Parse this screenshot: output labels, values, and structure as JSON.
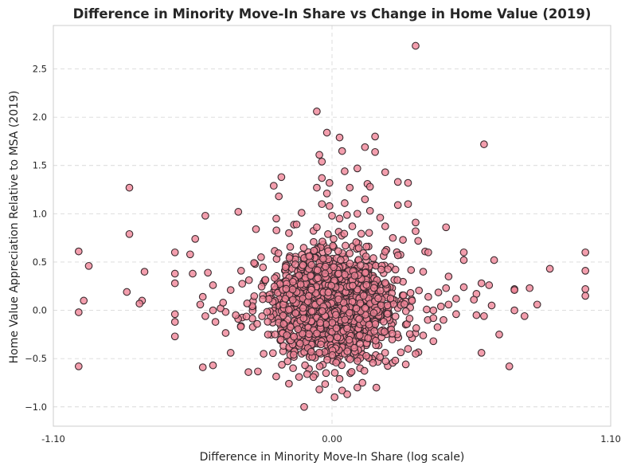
{
  "chart_data": {
    "type": "scatter",
    "title": "Difference in Minority Move-In Share vs Change in Home Value (2019)",
    "xlabel": "Difference in Minority Move-In Share (log scale)",
    "ylabel": "Home Value Appreciation Relative to MSA (2019)",
    "xlim": [
      -1.1,
      1.1
    ],
    "ylim": [
      -1.2,
      2.95
    ],
    "x_ticks": [
      -1.1,
      0.0,
      1.1
    ],
    "x_tick_labels": [
      "-1.10",
      "0.00",
      "1.10"
    ],
    "y_ticks": [
      -1.0,
      -0.5,
      0.0,
      0.5,
      1.0,
      1.5,
      2.0,
      2.5
    ],
    "y_tick_labels": [
      "−1.0",
      "−0.5",
      "0.0",
      "0.5",
      "1.0",
      "1.5",
      "2.0",
      "2.5"
    ],
    "grid": true,
    "marker_color": "#f08396",
    "marker_edge_color": "#3a2a2e",
    "points": [
      [
        0.33,
        2.74
      ],
      [
        -0.06,
        2.06
      ],
      [
        -0.02,
        1.84
      ],
      [
        0.03,
        1.79
      ],
      [
        0.17,
        1.8
      ],
      [
        0.6,
        1.72
      ],
      [
        0.13,
        1.69
      ],
      [
        -0.05,
        1.61
      ],
      [
        0.04,
        1.65
      ],
      [
        0.17,
        1.64
      ],
      [
        -0.04,
        1.54
      ],
      [
        0.1,
        1.47
      ],
      [
        0.05,
        1.44
      ],
      [
        0.21,
        1.43
      ],
      [
        -0.2,
        1.38
      ],
      [
        -0.23,
        1.29
      ],
      [
        -0.04,
        1.37
      ],
      [
        -0.01,
        1.32
      ],
      [
        0.14,
        1.31
      ],
      [
        0.26,
        1.33
      ],
      [
        0.3,
        1.32
      ],
      [
        -0.06,
        1.27
      ],
      [
        0.07,
        1.27
      ],
      [
        0.15,
        1.28
      ],
      [
        -0.8,
        1.27
      ],
      [
        -0.21,
        1.18
      ],
      [
        -0.02,
        1.21
      ],
      [
        0.13,
        1.15
      ],
      [
        -0.04,
        1.1
      ],
      [
        -0.01,
        1.08
      ],
      [
        0.05,
        1.11
      ],
      [
        0.26,
        1.09
      ],
      [
        0.3,
        1.1
      ],
      [
        -0.37,
        1.02
      ],
      [
        -0.12,
        1.01
      ],
      [
        0.0,
        0.98
      ],
      [
        0.1,
        1.0
      ],
      [
        0.15,
        1.03
      ],
      [
        -0.5,
        0.98
      ],
      [
        -0.22,
        0.95
      ],
      [
        0.03,
        0.95
      ],
      [
        0.19,
        0.96
      ],
      [
        0.33,
        0.91
      ],
      [
        -0.14,
        0.89
      ],
      [
        -0.06,
        0.86
      ],
      [
        0.08,
        0.87
      ],
      [
        0.21,
        0.87
      ],
      [
        0.45,
        0.86
      ],
      [
        -0.3,
        0.84
      ],
      [
        -0.17,
        0.8
      ],
      [
        -0.8,
        0.79
      ],
      [
        0.24,
        0.75
      ],
      [
        0.33,
        0.82
      ],
      [
        -0.54,
        0.74
      ],
      [
        0.28,
        0.73
      ],
      [
        0.34,
        0.72
      ],
      [
        -0.62,
        0.6
      ],
      [
        0.38,
        0.6
      ],
      [
        0.52,
        0.6
      ],
      [
        1.0,
        0.6
      ],
      [
        -1.0,
        0.61
      ],
      [
        -0.56,
        0.58
      ],
      [
        -0.28,
        0.55
      ],
      [
        0.26,
        0.57
      ],
      [
        -0.09,
        0.56
      ],
      [
        0.64,
        0.52
      ],
      [
        0.52,
        0.52
      ],
      [
        -0.96,
        0.46
      ],
      [
        -0.74,
        0.4
      ],
      [
        -0.55,
        0.38
      ],
      [
        -0.62,
        0.38
      ],
      [
        -0.49,
        0.39
      ],
      [
        0.36,
        0.4
      ],
      [
        0.46,
        0.35
      ],
      [
        0.86,
        0.43
      ],
      [
        1.0,
        0.41
      ],
      [
        -0.62,
        0.28
      ],
      [
        -0.47,
        0.26
      ],
      [
        0.59,
        0.28
      ],
      [
        0.62,
        0.26
      ],
      [
        0.52,
        0.24
      ],
      [
        0.72,
        0.22
      ],
      [
        0.78,
        0.23
      ],
      [
        0.72,
        0.21
      ],
      [
        1.0,
        0.22
      ],
      [
        1.0,
        0.15
      ],
      [
        -0.81,
        0.19
      ],
      [
        -0.51,
        0.14
      ],
      [
        0.49,
        0.12
      ],
      [
        0.57,
        0.17
      ],
      [
        0.56,
        0.11
      ],
      [
        -0.98,
        0.1
      ],
      [
        -0.75,
        0.1
      ],
      [
        -0.52,
        0.06
      ],
      [
        -0.47,
        0.0
      ],
      [
        -0.44,
        0.02
      ],
      [
        -0.76,
        0.07
      ],
      [
        0.46,
        0.06
      ],
      [
        0.63,
        0.05
      ],
      [
        0.72,
        0.0
      ],
      [
        0.81,
        0.06
      ],
      [
        0.4,
        0.0
      ],
      [
        -1.0,
        -0.02
      ],
      [
        -0.62,
        -0.04
      ],
      [
        -0.5,
        -0.06
      ],
      [
        0.49,
        -0.04
      ],
      [
        0.57,
        -0.05
      ],
      [
        0.6,
        -0.06
      ],
      [
        0.76,
        -0.06
      ],
      [
        -0.62,
        -0.12
      ],
      [
        -0.46,
        -0.12
      ],
      [
        0.44,
        -0.1
      ],
      [
        0.4,
        -0.08
      ],
      [
        -0.62,
        -0.27
      ],
      [
        0.66,
        -0.25
      ],
      [
        0.36,
        -0.26
      ],
      [
        0.4,
        -0.32
      ],
      [
        0.59,
        -0.44
      ],
      [
        -0.4,
        -0.44
      ],
      [
        -0.27,
        -0.45
      ],
      [
        -1.0,
        -0.58
      ],
      [
        -0.47,
        -0.57
      ],
      [
        -0.51,
        -0.59
      ],
      [
        0.7,
        -0.58
      ],
      [
        -0.33,
        -0.64
      ],
      [
        0.25,
        -0.52
      ],
      [
        0.3,
        -0.4
      ],
      [
        0.33,
        -0.45
      ],
      [
        -0.13,
        -0.69
      ],
      [
        0.03,
        -0.71
      ],
      [
        -0.17,
        -0.76
      ],
      [
        0.12,
        -0.75
      ],
      [
        -0.05,
        -0.82
      ],
      [
        0.04,
        -0.83
      ],
      [
        0.1,
        -0.8
      ],
      [
        0.01,
        -0.9
      ],
      [
        0.06,
        -0.87
      ],
      [
        -0.11,
        -1.0
      ],
      [
        0.31,
        0.18
      ],
      [
        0.38,
        0.14
      ],
      [
        0.43,
        0.04
      ],
      [
        -0.4,
        0.21
      ],
      [
        -0.43,
        0.08
      ],
      [
        -0.38,
        -0.05
      ],
      [
        -0.36,
        -0.17
      ],
      [
        0.45,
        0.23
      ]
    ],
    "cluster": {
      "x_center": 0.0,
      "x_spread": 0.12,
      "y_center": 0.05,
      "y_spread": 0.27,
      "count": 1800
    }
  }
}
